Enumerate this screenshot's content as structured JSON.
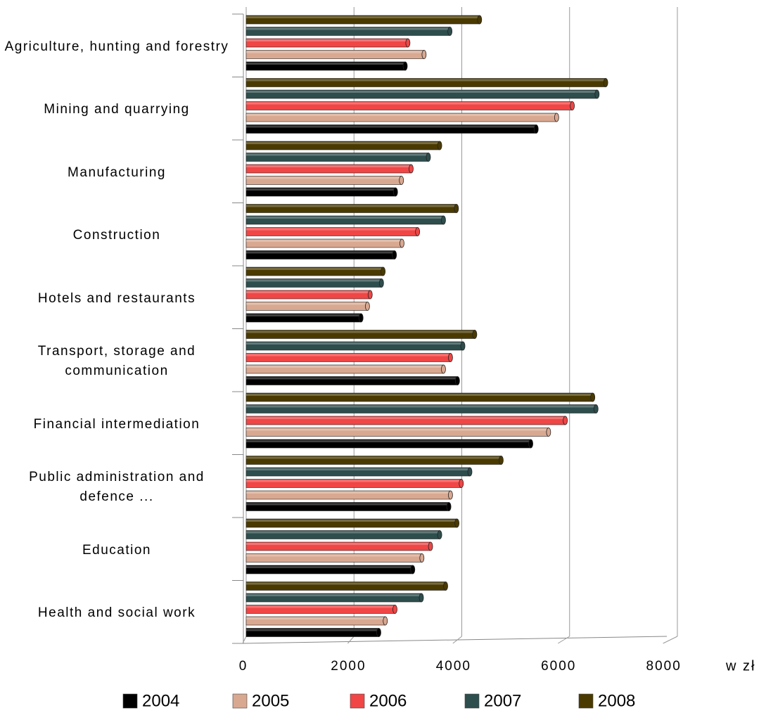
{
  "chart_data": {
    "type": "bar",
    "orientation": "horizontal",
    "categories": [
      "Agriculture, hunting and forestry",
      "Mining and quarrying",
      "Manufacturing",
      "Construction",
      "Hotels and restaurants",
      "Transport, storage and communication",
      "Financial intermediation",
      "Public administration and defence ...",
      "Education",
      "Health and social work"
    ],
    "series": [
      {
        "name": "2004",
        "color": "#000000",
        "values": [
          2950,
          5380,
          2770,
          2750,
          2130,
          3920,
          5280,
          3760,
          3090,
          2460
        ]
      },
      {
        "name": "2005",
        "color": "#d9a891",
        "values": [
          3300,
          5760,
          2880,
          2890,
          2250,
          3660,
          5610,
          3790,
          3260,
          2580
        ]
      },
      {
        "name": "2006",
        "color": "#f04646",
        "values": [
          3000,
          6050,
          3060,
          3180,
          2300,
          3790,
          5920,
          3990,
          3420,
          2760
        ]
      },
      {
        "name": "2007",
        "color": "#2e4d4d",
        "values": [
          3780,
          6510,
          3380,
          3660,
          2510,
          4020,
          6490,
          4150,
          3590,
          3250
        ]
      },
      {
        "name": "2008",
        "color": "#4a3a00",
        "values": [
          4330,
          6670,
          3590,
          3900,
          2540,
          4240,
          6430,
          4730,
          3910,
          3700
        ]
      }
    ],
    "x_label": "w zł",
    "xlim": [
      0,
      8000
    ],
    "xticks": [
      0,
      2000,
      4000,
      6000,
      8000
    ],
    "grid": true,
    "legend": "bottom"
  }
}
